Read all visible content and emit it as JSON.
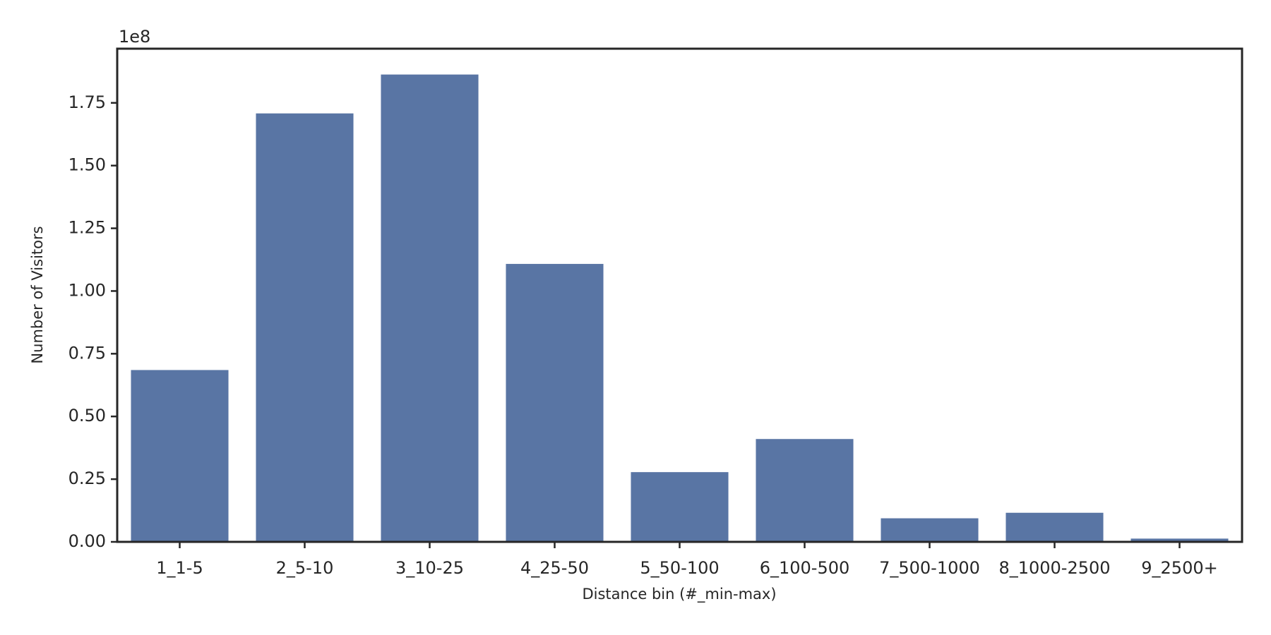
{
  "chart_data": {
    "type": "bar",
    "x_label": "Distance bin (#_min-max)",
    "y_label": "Number of Visitors",
    "y_offset_label": "1e8",
    "categories": [
      "1_1-5",
      "2_5-10",
      "3_10-25",
      "4_25-50",
      "5_50-100",
      "6_100-500",
      "7_500-1000",
      "8_1000-2500",
      "9_2500+"
    ],
    "values": [
      0.685,
      1.708,
      1.863,
      1.108,
      0.278,
      0.41,
      0.094,
      0.116,
      0.013
    ],
    "color": "#5975a4",
    "ylim": [
      0,
      1.966
    ],
    "yticks": [
      {
        "value": 0,
        "label": "0.00"
      },
      0.25,
      {
        "value": 0.5,
        "label": "0.50"
      },
      0.75,
      {
        "value": 1,
        "label": "1.00"
      },
      1.25,
      {
        "value": 1.5,
        "label": "1.50"
      },
      1.75
    ]
  }
}
